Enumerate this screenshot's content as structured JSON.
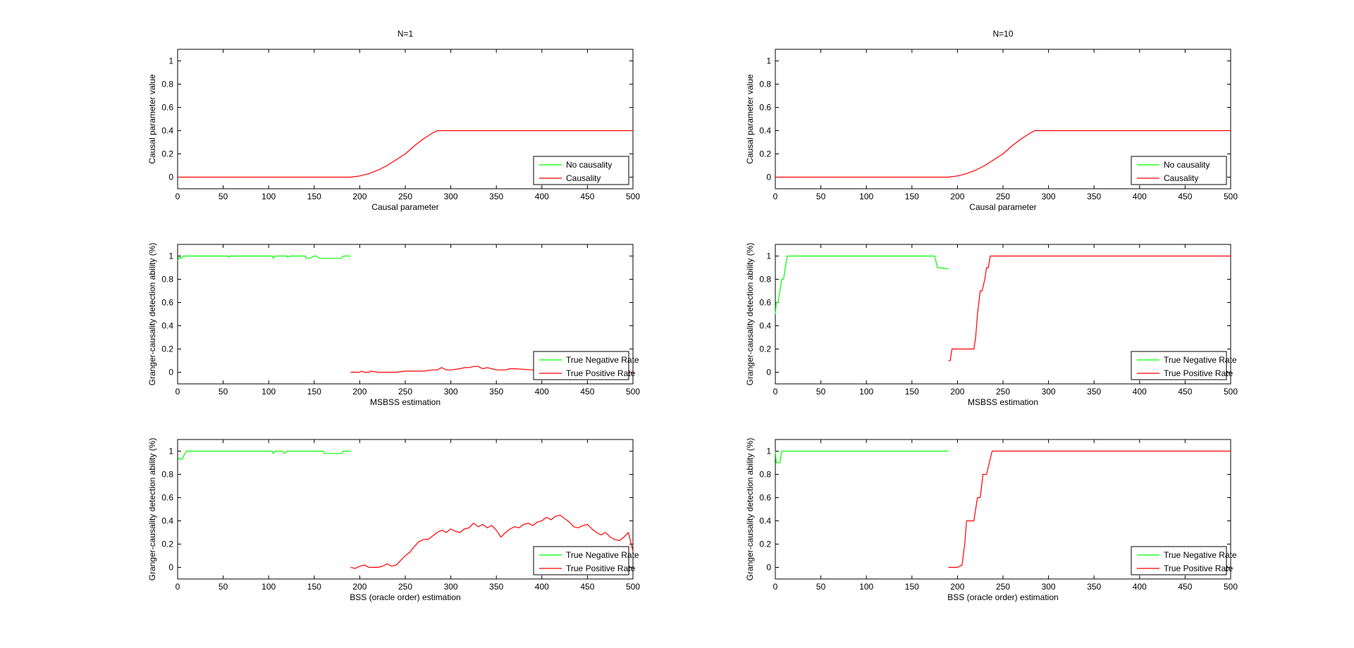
{
  "figure": {
    "colors": {
      "no_causality": "#00ff00",
      "causality": "#ff0000",
      "axes": "#000000",
      "background": "#ffffff"
    }
  },
  "chart_data": [
    {
      "id": "p11",
      "type": "line",
      "title": "N=1",
      "xlabel": "Causal parameter",
      "ylabel": "Causal parameter value",
      "xlim": [
        0,
        500
      ],
      "ylim": [
        -0.1,
        1.1
      ],
      "xticks": [
        0,
        50,
        100,
        150,
        200,
        250,
        300,
        350,
        400,
        450,
        500
      ],
      "yticks": [
        0,
        0.2,
        0.4,
        0.6,
        0.8,
        1
      ],
      "grid": false,
      "legend_position": "bottom-right",
      "series": [
        {
          "name": "No causality",
          "color": "#00ff00",
          "x": [],
          "y": []
        },
        {
          "name": "Causality",
          "color": "#ff0000",
          "x": [
            0,
            190,
            200,
            210,
            220,
            230,
            240,
            250,
            260,
            270,
            280,
            285,
            500
          ],
          "y": [
            0,
            0,
            0.01,
            0.03,
            0.06,
            0.1,
            0.15,
            0.2,
            0.27,
            0.33,
            0.38,
            0.4,
            0.4
          ]
        }
      ]
    },
    {
      "id": "p21",
      "type": "line",
      "title": "",
      "xlabel": "MSBSS estimation",
      "ylabel": "Granger-causality detection ability (%)",
      "xlim": [
        0,
        500
      ],
      "ylim": [
        -0.1,
        1.1
      ],
      "xticks": [
        0,
        50,
        100,
        150,
        200,
        250,
        300,
        350,
        400,
        450,
        500
      ],
      "yticks": [
        0,
        0.2,
        0.4,
        0.6,
        0.8,
        1
      ],
      "grid": false,
      "legend_position": "bottom-right",
      "series": [
        {
          "name": "True Negative Rate",
          "color": "#00ff00",
          "x": [
            0,
            2,
            4,
            6,
            55,
            56,
            58,
            104,
            105,
            107,
            120,
            121,
            123,
            140,
            141,
            145,
            150,
            152,
            156,
            160,
            180,
            182,
            190
          ],
          "y": [
            0.96,
            0.99,
            0.98,
            1,
            1,
            0.99,
            1,
            1,
            0.98,
            1,
            1,
            0.99,
            1,
            1,
            0.98,
            0.98,
            1,
            1,
            0.98,
            0.98,
            0.98,
            1,
            1
          ]
        },
        {
          "name": "True Positive Rate",
          "color": "#ff0000",
          "x": [
            190,
            200,
            202,
            205,
            210,
            212,
            220,
            240,
            250,
            260,
            270,
            280,
            285,
            290,
            295,
            300,
            310,
            315,
            320,
            325,
            330,
            335,
            340,
            345,
            350,
            360,
            365,
            370,
            390,
            400,
            430,
            450,
            470,
            490,
            500
          ],
          "y": [
            0,
            0,
            0.01,
            0,
            0,
            0.01,
            0,
            0,
            0.01,
            0.01,
            0.01,
            0.02,
            0.02,
            0.04,
            0.02,
            0.02,
            0.03,
            0.04,
            0.04,
            0.05,
            0.05,
            0.03,
            0.04,
            0.03,
            0.02,
            0.02,
            0.03,
            0.03,
            0.02,
            0.02,
            0.01,
            0.01,
            0.01,
            0,
            0
          ]
        }
      ]
    },
    {
      "id": "p31",
      "type": "line",
      "title": "",
      "xlabel": "BSS (oracle order) estimation",
      "ylabel": "Granger-causality detection ability (%)",
      "xlim": [
        0,
        500
      ],
      "ylim": [
        -0.1,
        1.1
      ],
      "xticks": [
        0,
        50,
        100,
        150,
        200,
        250,
        300,
        350,
        400,
        450,
        500
      ],
      "yticks": [
        0,
        0.2,
        0.4,
        0.6,
        0.8,
        1
      ],
      "grid": false,
      "legend_position": "bottom-right",
      "series": [
        {
          "name": "True Negative Rate",
          "color": "#00ff00",
          "x": [
            0,
            2,
            5,
            8,
            10,
            104,
            105,
            107,
            115,
            117,
            120,
            130,
            132,
            160,
            161,
            180,
            182,
            190
          ],
          "y": [
            0.95,
            0.93,
            0.93,
            0.98,
            1,
            1,
            0.98,
            1,
            1,
            0.98,
            1,
            1,
            1,
            1,
            0.98,
            0.98,
            1,
            1
          ]
        },
        {
          "name": "True Positive Rate",
          "color": "#ff0000",
          "x": [
            190,
            195,
            200,
            205,
            210,
            215,
            220,
            225,
            230,
            235,
            240,
            245,
            250,
            255,
            260,
            265,
            270,
            275,
            280,
            285,
            290,
            295,
            300,
            305,
            310,
            315,
            320,
            325,
            330,
            335,
            340,
            345,
            350,
            355,
            360,
            365,
            370,
            375,
            380,
            385,
            390,
            395,
            400,
            405,
            410,
            415,
            420,
            425,
            430,
            435,
            440,
            445,
            450,
            455,
            460,
            465,
            470,
            475,
            480,
            485,
            490,
            495,
            500
          ],
          "y": [
            0,
            -0.01,
            0.01,
            0.02,
            0,
            0,
            0,
            0.01,
            0.03,
            0.01,
            0.02,
            0.06,
            0.1,
            0.13,
            0.18,
            0.22,
            0.24,
            0.24,
            0.27,
            0.3,
            0.32,
            0.3,
            0.33,
            0.31,
            0.3,
            0.33,
            0.34,
            0.38,
            0.35,
            0.37,
            0.34,
            0.36,
            0.32,
            0.26,
            0.3,
            0.33,
            0.35,
            0.34,
            0.37,
            0.38,
            0.36,
            0.39,
            0.4,
            0.43,
            0.41,
            0.44,
            0.45,
            0.42,
            0.39,
            0.35,
            0.34,
            0.36,
            0.37,
            0.33,
            0.3,
            0.28,
            0.3,
            0.26,
            0.24,
            0.23,
            0.26,
            0.3,
            0.14
          ]
        }
      ]
    },
    {
      "id": "p12",
      "type": "line",
      "title": "N=10",
      "xlabel": "Causal parameter",
      "ylabel": "Causal parameter value",
      "xlim": [
        0,
        500
      ],
      "ylim": [
        -0.1,
        1.1
      ],
      "xticks": [
        0,
        50,
        100,
        150,
        200,
        250,
        300,
        350,
        400,
        450,
        500
      ],
      "yticks": [
        0,
        0.2,
        0.4,
        0.6,
        0.8,
        1
      ],
      "grid": false,
      "legend_position": "bottom-right",
      "series": [
        {
          "name": "No causality",
          "color": "#00ff00",
          "x": [],
          "y": []
        },
        {
          "name": "Causality",
          "color": "#ff0000",
          "x": [
            0,
            190,
            200,
            210,
            220,
            230,
            240,
            250,
            260,
            270,
            280,
            285,
            500
          ],
          "y": [
            0,
            0,
            0.01,
            0.03,
            0.06,
            0.1,
            0.15,
            0.2,
            0.27,
            0.33,
            0.38,
            0.4,
            0.4
          ]
        }
      ]
    },
    {
      "id": "p22",
      "type": "line",
      "title": "",
      "xlabel": "MSBSS estimation",
      "ylabel": "Granger-causality detection ability (%)",
      "xlim": [
        0,
        500
      ],
      "ylim": [
        -0.1,
        1.1
      ],
      "xticks": [
        0,
        50,
        100,
        150,
        200,
        250,
        300,
        350,
        400,
        450,
        500
      ],
      "yticks": [
        0,
        0.2,
        0.4,
        0.6,
        0.8,
        1
      ],
      "grid": false,
      "legend_position": "bottom-right",
      "series": [
        {
          "name": "True Negative Rate",
          "color": "#00ff00",
          "x": [
            0,
            1,
            3,
            5,
            7,
            9,
            11,
            13,
            15,
            175,
            178,
            180,
            190
          ],
          "y": [
            0.5,
            0.6,
            0.6,
            0.7,
            0.8,
            0.8,
            0.9,
            1,
            1,
            1,
            0.9,
            0.9,
            0.89
          ]
        },
        {
          "name": "True Positive Rate",
          "color": "#ff0000",
          "x": [
            190,
            192,
            194,
            210,
            212,
            218,
            220,
            222,
            225,
            227,
            230,
            232,
            234,
            236,
            238,
            500
          ],
          "y": [
            0.1,
            0.1,
            0.2,
            0.2,
            0.2,
            0.2,
            0.3,
            0.5,
            0.7,
            0.7,
            0.8,
            0.9,
            0.9,
            1,
            1,
            1
          ]
        }
      ]
    },
    {
      "id": "p32",
      "type": "line",
      "title": "",
      "xlabel": "BSS (oracle order) estimation",
      "ylabel": "Granger-causality detection ability (%)",
      "xlim": [
        0,
        500
      ],
      "ylim": [
        -0.1,
        1.1
      ],
      "xticks": [
        0,
        50,
        100,
        150,
        200,
        250,
        300,
        350,
        400,
        450,
        500
      ],
      "yticks": [
        0,
        0.2,
        0.4,
        0.6,
        0.8,
        1
      ],
      "grid": false,
      "legend_position": "bottom-right",
      "series": [
        {
          "name": "True Negative Rate",
          "color": "#00ff00",
          "x": [
            0,
            1,
            5,
            7,
            190
          ],
          "y": [
            1,
            0.9,
            0.9,
            1,
            1
          ]
        },
        {
          "name": "True Positive Rate",
          "color": "#ff0000",
          "x": [
            190,
            200,
            205,
            208,
            210,
            215,
            218,
            220,
            222,
            225,
            228,
            230,
            232,
            235,
            238,
            500
          ],
          "y": [
            0,
            0,
            0.02,
            0.2,
            0.4,
            0.4,
            0.4,
            0.5,
            0.6,
            0.6,
            0.8,
            0.8,
            0.8,
            0.9,
            1,
            1
          ]
        }
      ]
    }
  ]
}
